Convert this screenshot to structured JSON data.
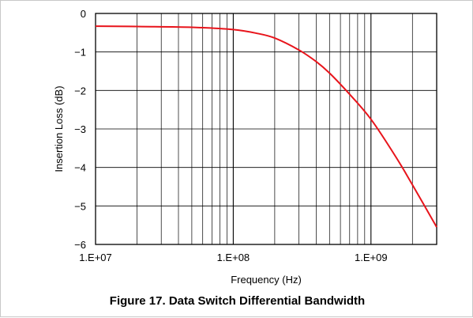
{
  "caption": "Figure 17. Data Switch Differential Bandwidth",
  "chart_data": {
    "type": "line",
    "title": "Figure 17. Data Switch Differential Bandwidth",
    "xlabel": "Frequency (Hz)",
    "ylabel": "Insertion Loss (dB)",
    "x_scale": "log",
    "xlim": [
      10000000,
      3000000000
    ],
    "ylim": [
      -6,
      0
    ],
    "x_ticks": [
      10000000,
      100000000,
      1000000000
    ],
    "x_tick_labels": [
      "1.E+07",
      "1.E+08",
      "1.E+09"
    ],
    "y_ticks": [
      0,
      -1,
      -2,
      -3,
      -4,
      -5,
      -6
    ],
    "y_tick_labels": [
      "0",
      "−1",
      "−2",
      "−3",
      "−4",
      "−5",
      "−6"
    ],
    "grid": true,
    "line_color": "#e8141b",
    "series": [
      {
        "x": [
          10000000,
          20000000,
          50000000,
          100000000,
          150000000,
          200000000,
          300000000,
          400000000,
          500000000,
          700000000,
          1000000000,
          1500000000,
          2000000000,
          3000000000
        ],
        "y": [
          -0.33,
          -0.34,
          -0.36,
          -0.42,
          -0.52,
          -0.64,
          -0.95,
          -1.25,
          -1.55,
          -2.1,
          -2.75,
          -3.7,
          -4.45,
          -5.55
        ]
      }
    ]
  }
}
